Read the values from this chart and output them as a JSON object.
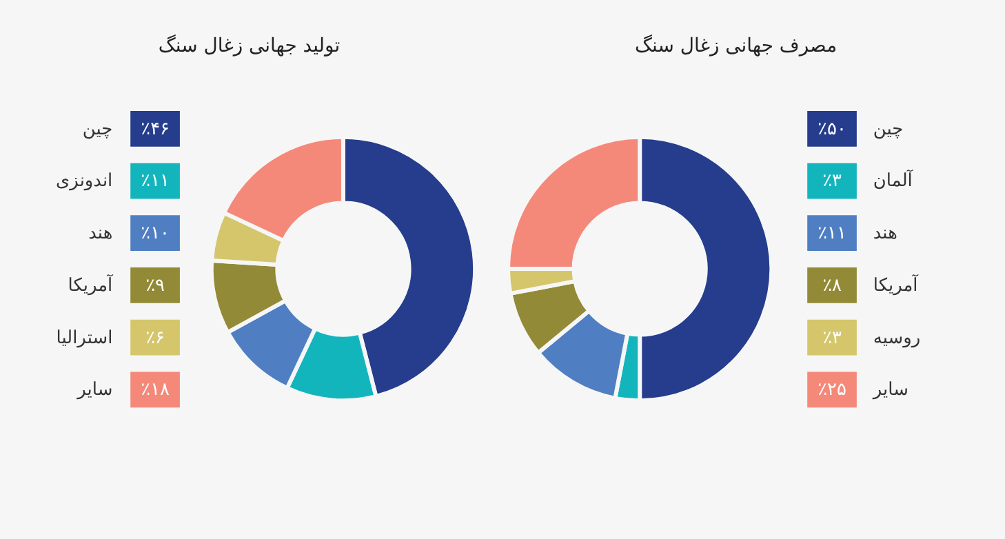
{
  "chart_data": [
    {
      "type": "donut",
      "title": "تولید جهانی زغال سنگ",
      "legend": "left",
      "categories": [
        "چین",
        "اندونزی",
        "هند",
        "آمریکا",
        "استرالیا",
        "سایر"
      ],
      "values": [
        46,
        11,
        10,
        9,
        6,
        18
      ],
      "value_labels": [
        "٪۴۶",
        "٪۱۱",
        "٪۱۰",
        "٪۹",
        "٪۶",
        "٪۱۸"
      ],
      "colors": [
        "#253d8c",
        "#13b5bd",
        "#4f7fc2",
        "#928a36",
        "#d5c66b",
        "#f4897a"
      ]
    },
    {
      "type": "donut",
      "title": "مصرف جهانی زغال سنگ",
      "legend": "right",
      "categories": [
        "چین",
        "آلمان",
        "هند",
        "آمریکا",
        "روسیه",
        "سایر"
      ],
      "values": [
        50,
        3,
        11,
        8,
        3,
        25
      ],
      "value_labels": [
        "٪۵۰",
        "٪۳",
        "٪۱۱",
        "٪۸",
        "٪۳",
        "٪۲۵"
      ],
      "colors": [
        "#253d8c",
        "#13b5bd",
        "#4f7fc2",
        "#928a36",
        "#d5c66b",
        "#f4897a"
      ]
    }
  ]
}
